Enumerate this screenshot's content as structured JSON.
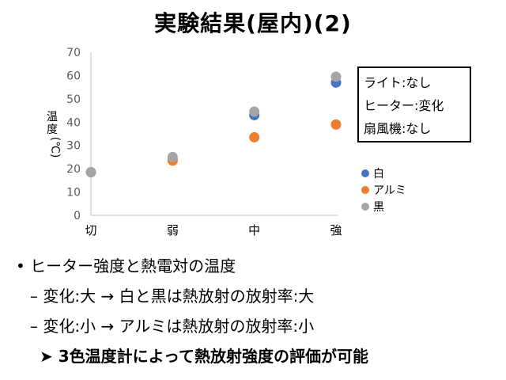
{
  "title": "実験結果(屋内)(2)",
  "chart_data": {
    "type": "scatter",
    "categories": [
      "切",
      "弱",
      "中",
      "強"
    ],
    "ylabel": "温度 (℃)",
    "ylim": [
      0,
      70
    ],
    "yticks": [
      0,
      10,
      20,
      30,
      40,
      50,
      60,
      70
    ],
    "grid": false,
    "legend_position": "right",
    "series": [
      {
        "name": "白",
        "color": "#4472C4",
        "values": [
          18.5,
          24,
          43,
          57
        ]
      },
      {
        "name": "アルミ",
        "color": "#ED7D31",
        "values": [
          18.5,
          23.5,
          33.5,
          39
        ]
      },
      {
        "name": "黒",
        "color": "#A5A5A5",
        "values": [
          18.5,
          25,
          44.5,
          59.5
        ]
      }
    ]
  },
  "ylabel_top": "温",
  "ylabel_mid": "度",
  "ylabel_unit": "(℃)",
  "conditions": [
    "ライト:なし",
    "ヒーター:変化",
    "扇風機:なし"
  ],
  "bullets": {
    "b1": "• ヒーター強度と熱電対の温度",
    "b2": "– 変化:大 → 白と黒は熱放射の放射率:大",
    "b3": "– 変化:小 → アルミは熱放射の放射率:小",
    "b4": "➤ 3色温度計によって熱放射強度の評価が可能"
  }
}
